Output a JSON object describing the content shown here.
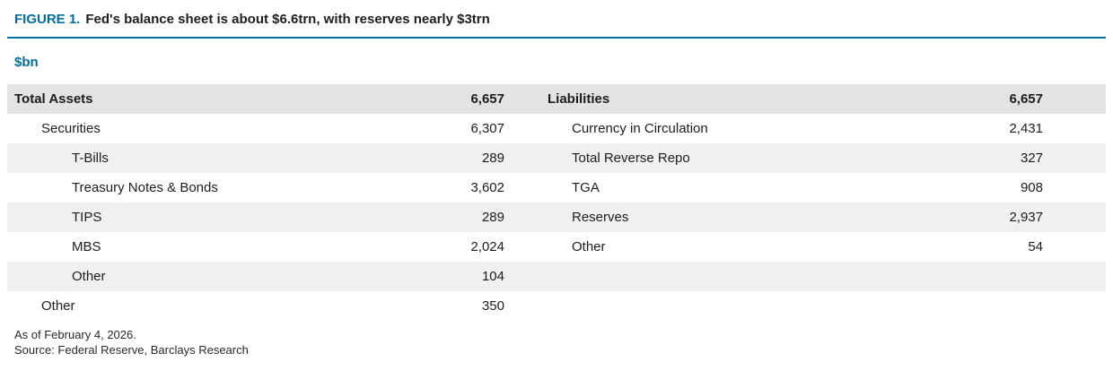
{
  "figure": {
    "label": "FIGURE 1.",
    "title": "Fed's balance sheet is about $6.6trn, with reserves nearly $3trn",
    "unit_label": "$bn"
  },
  "chart_data": {
    "type": "table",
    "title": "Fed's balance sheet is about $6.6trn, with reserves nearly $3trn",
    "unit": "$bn",
    "assets": {
      "Total Assets": 6657,
      "Securities": 6307,
      "T-Bills": 289,
      "Treasury Notes & Bonds": 3602,
      "TIPS": 289,
      "MBS": 2024,
      "Other (Securities)": 104,
      "Other": 350
    },
    "liabilities": {
      "Liabilities": 6657,
      "Currency in Circulation": 2431,
      "Total Reverse Repo": 327,
      "TGA": 908,
      "Reserves": 2937,
      "Other": 54
    }
  },
  "table": {
    "rows": [
      {
        "left_label": "Total Assets",
        "left_value": "6,657",
        "right_label": "Liabilities",
        "right_value": "6,657"
      },
      {
        "left_label": "Securities",
        "left_value": "6,307",
        "right_label": "Currency in Circulation",
        "right_value": "2,431"
      },
      {
        "left_label": "T-Bills",
        "left_value": "289",
        "right_label": "Total Reverse Repo",
        "right_value": "327"
      },
      {
        "left_label": "Treasury Notes & Bonds",
        "left_value": "3,602",
        "right_label": "TGA",
        "right_value": "908"
      },
      {
        "left_label": "TIPS",
        "left_value": "289",
        "right_label": "Reserves",
        "right_value": "2,937"
      },
      {
        "left_label": "MBS",
        "left_value": "2,024",
        "right_label": "Other",
        "right_value": "54"
      },
      {
        "left_label": "Other",
        "left_value": "104",
        "right_label": "",
        "right_value": ""
      },
      {
        "left_label": "Other",
        "left_value": "350",
        "right_label": "",
        "right_value": ""
      }
    ]
  },
  "footnotes": {
    "as_of": "As of February 4, 2026.",
    "source": "Source: Federal Reserve, Barclays Research"
  },
  "colors": {
    "accent": "#006f9e",
    "header_row_bg": "#e3e3e3",
    "stripe_row_bg": "#f0f0f0"
  }
}
